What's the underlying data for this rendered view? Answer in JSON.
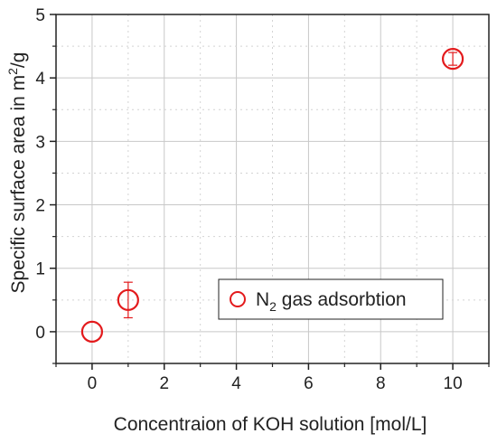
{
  "chart_data": {
    "type": "scatter",
    "xlabel": "Concentraion of KOH solution [mol/L]",
    "ylabel": {
      "prefix": "Specific surface area in m",
      "sup": "2",
      "suffix": "/g"
    },
    "xlim": [
      -1,
      11
    ],
    "ylim": [
      -0.5,
      5
    ],
    "x_ticks": [
      0,
      2,
      4,
      6,
      8,
      10
    ],
    "x_minor_ticks": [
      -1,
      1,
      3,
      5,
      7,
      9,
      11
    ],
    "y_ticks": [
      0,
      1,
      2,
      3,
      4,
      5
    ],
    "y_minor_ticks": [
      -0.5,
      0.5,
      1.5,
      2.5,
      3.5,
      4.5
    ],
    "grid": true,
    "legend_position": "lower-right",
    "marker": "open-circle",
    "color": "#e31a1c",
    "series": [
      {
        "name": {
          "prefix": "N",
          "sub": "2",
          "suffix": " gas adsorbtion"
        },
        "points": [
          {
            "x": 0,
            "y": 0.0,
            "err": 0.0
          },
          {
            "x": 1,
            "y": 0.5,
            "err": 0.28
          },
          {
            "x": 10,
            "y": 4.3,
            "err": 0.1
          }
        ]
      }
    ]
  }
}
